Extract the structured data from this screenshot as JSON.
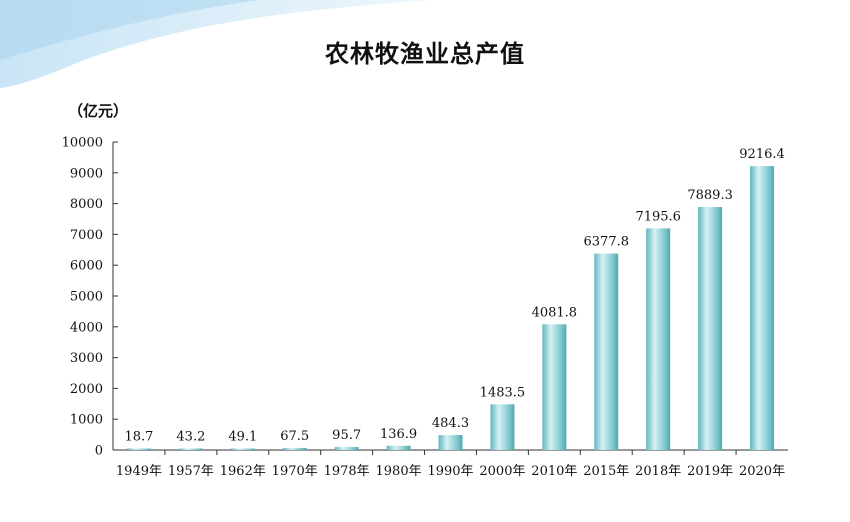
{
  "title": "农林牧渔业总产值",
  "unit": "（亿元）",
  "colors": {
    "bar_light": "#d6f1f3",
    "bar_mid": "#8fd0d6",
    "bar_dark": "#4fa9b2",
    "corner_wave": "#cfe8f6"
  },
  "chart_data": {
    "type": "bar",
    "title": "农林牧渔业总产值",
    "ylabel": "（亿元）",
    "xlabel": "",
    "categories": [
      "1949年",
      "1957年",
      "1962年",
      "1970年",
      "1978年",
      "1980年",
      "1990年",
      "2000年",
      "2010年",
      "2015年",
      "2018年",
      "2019年",
      "2020年"
    ],
    "values": [
      18.7,
      43.2,
      49.1,
      67.5,
      95.7,
      136.9,
      484.3,
      1483.5,
      4081.8,
      6377.8,
      7195.6,
      7889.3,
      9216.4
    ],
    "value_labels": [
      "18.7",
      "43.2",
      "49.1",
      "67.5",
      "95.7",
      "136.9",
      "484.3",
      "1483.5",
      "4081.8",
      "6377.8",
      "7195.6",
      "7889.3",
      "9216.4"
    ],
    "ylim": [
      0,
      10000
    ],
    "yticks": [
      "0",
      "1000",
      "2000",
      "3000",
      "4000",
      "5000",
      "6000",
      "7000",
      "8000",
      "9000",
      "10000"
    ],
    "grid": false,
    "legend": "none"
  }
}
